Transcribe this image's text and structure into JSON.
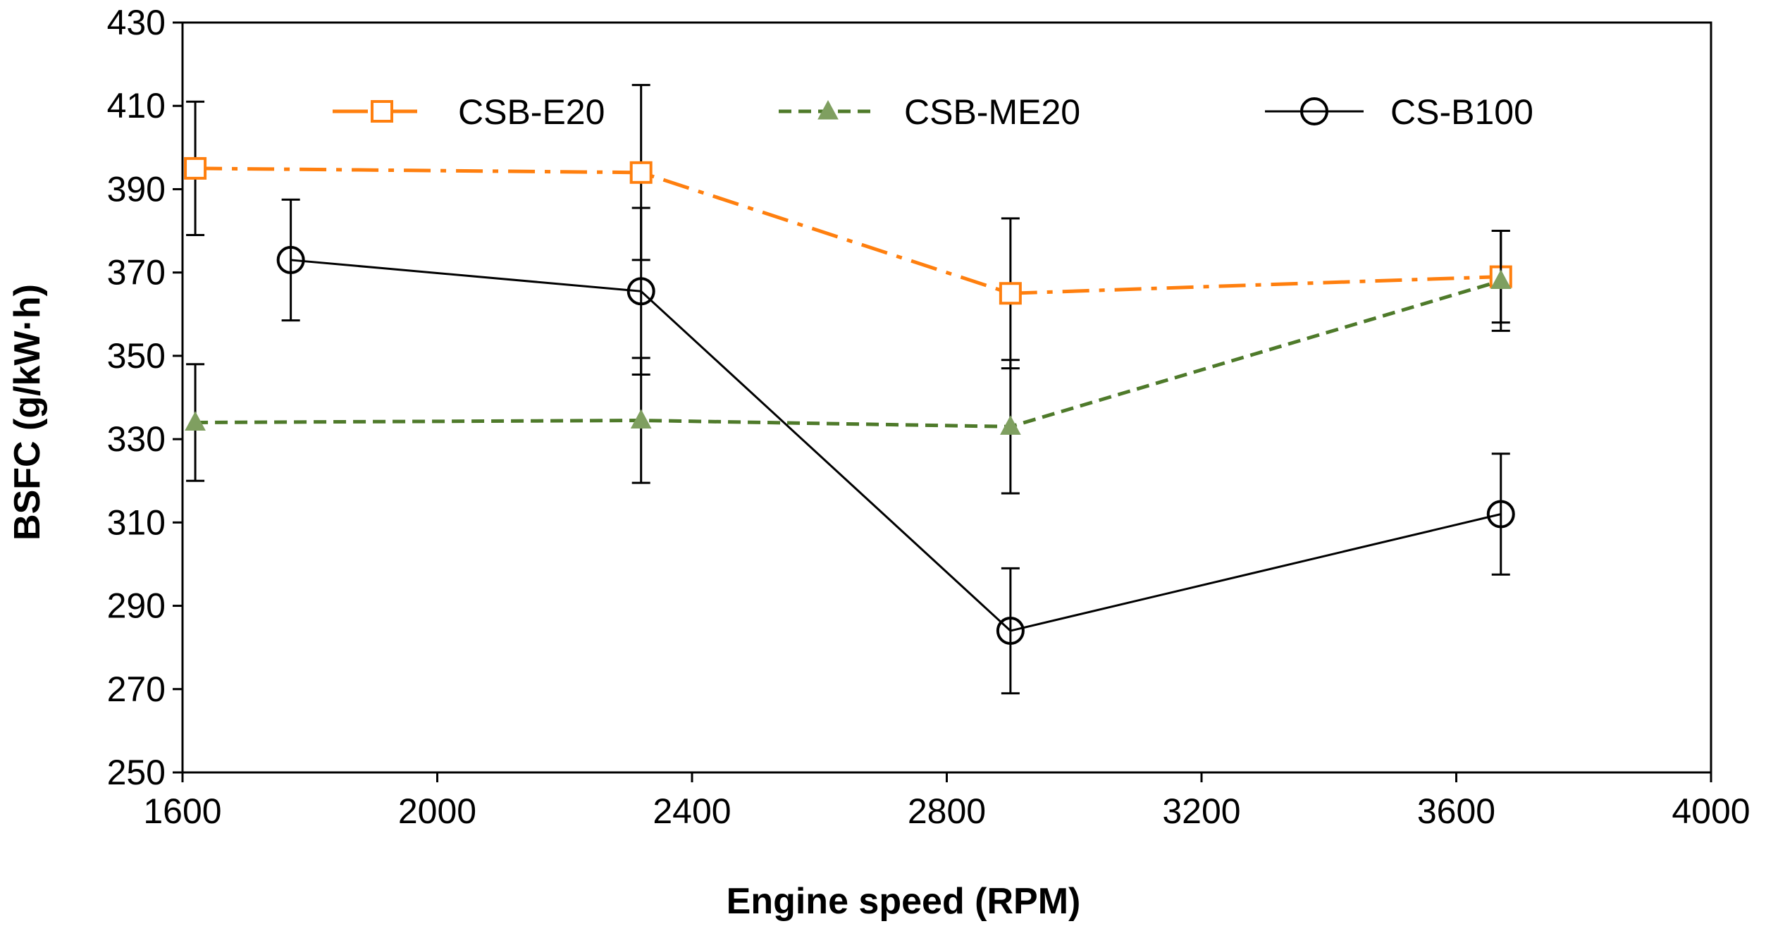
{
  "chart_data": {
    "type": "line",
    "title": "",
    "xlabel": "Engine speed (RPM)",
    "ylabel": "BSFC (g/kW·h)",
    "xlim": [
      1600,
      4000
    ],
    "ylim": [
      250,
      430
    ],
    "xticks": [
      1600,
      2000,
      2400,
      2800,
      3200,
      3600,
      4000
    ],
    "yticks": [
      250,
      270,
      290,
      310,
      330,
      350,
      370,
      390,
      410,
      430
    ],
    "x_tick_labels": [
      "1600",
      "2000",
      "2400",
      "2800",
      "3200",
      "3600",
      "4000"
    ],
    "y_tick_labels": [
      "250",
      "270",
      "290",
      "310",
      "330",
      "350",
      "370",
      "390",
      "410",
      "430"
    ],
    "grid": false,
    "legend_position": "top",
    "series": [
      {
        "name": "CSB-E20",
        "color": "#FF7F0E",
        "line_style": "dash-dot",
        "marker": "open-square",
        "x": [
          1620,
          2320,
          2900,
          3670
        ],
        "y": [
          395,
          394,
          365,
          369
        ],
        "error": [
          16,
          21,
          18,
          11
        ]
      },
      {
        "name": "CSB-ME20",
        "color": "#4E7A2A",
        "marker_color": "#7F9F60",
        "line_style": "dashed",
        "marker": "filled-triangle",
        "x": [
          1620,
          2320,
          2900,
          3670
        ],
        "y": [
          334,
          334.5,
          333,
          368
        ],
        "error": [
          14,
          15,
          16,
          12
        ]
      },
      {
        "name": "CS-B100",
        "color": "#000000",
        "line_style": "solid",
        "marker": "open-circle",
        "x": [
          1770,
          2320,
          2900,
          3670
        ],
        "y": [
          373,
          365.5,
          284,
          312
        ],
        "error": [
          14.5,
          20,
          15,
          14.5
        ]
      }
    ]
  }
}
